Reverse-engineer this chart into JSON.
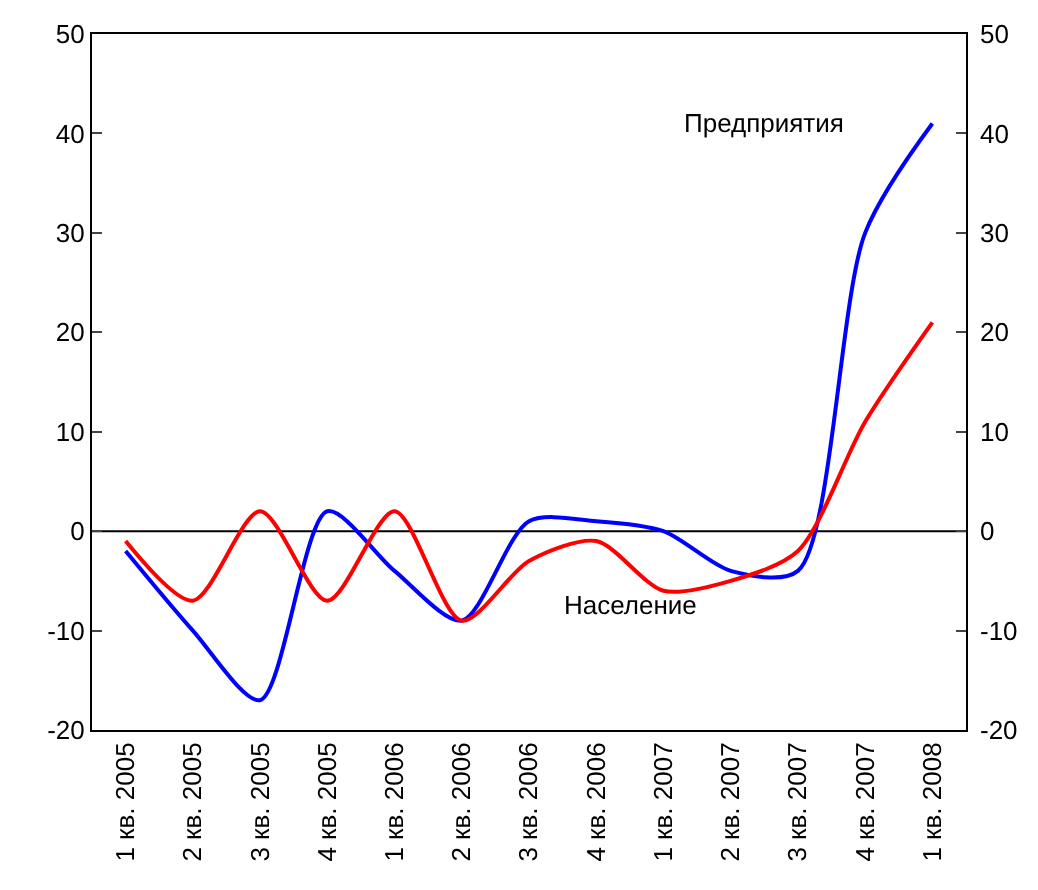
{
  "chart_data": {
    "type": "line",
    "categories": [
      "1 кв. 2005",
      "2 кв. 2005",
      "3 кв. 2005",
      "4 кв. 2005",
      "1 кв. 2006",
      "2 кв. 2006",
      "3 кв. 2006",
      "4 кв. 2006",
      "1 кв. 2007",
      "2 кв. 2007",
      "3 кв. 2007",
      "4 кв. 2007",
      "1 кв. 2008"
    ],
    "series": [
      {
        "name": "Предприятия",
        "color": "#0000ff",
        "values": [
          -2,
          -10,
          -17,
          2,
          -4,
          -9,
          1,
          1,
          0,
          -4,
          -4,
          30,
          41
        ]
      },
      {
        "name": "Население",
        "color": "#ff0000",
        "values": [
          -1,
          -7,
          2,
          -7,
          2,
          -9,
          -3,
          -1,
          -6,
          -5,
          -2,
          11,
          21
        ]
      }
    ],
    "ylim": [
      -20,
      50
    ],
    "yticks": [
      -20,
      -10,
      0,
      10,
      20,
      30,
      40,
      50
    ],
    "y2lim": [
      -20,
      50
    ],
    "y2ticks": [
      -20,
      -10,
      0,
      10,
      20,
      30,
      40,
      50
    ],
    "ref_lines": [
      {
        "axis": "y",
        "value": 0
      }
    ],
    "grid": false,
    "legend": false,
    "marker": "none",
    "line_style": "solid"
  }
}
